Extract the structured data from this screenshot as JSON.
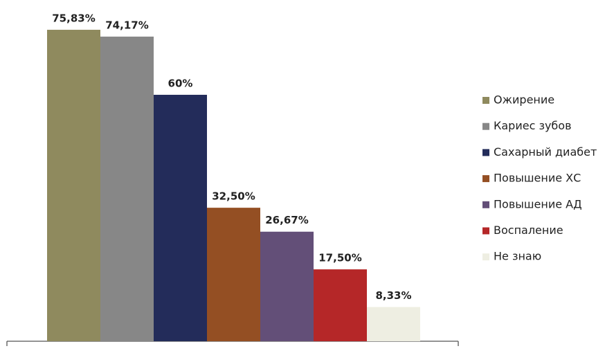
{
  "chart_data": {
    "type": "bar",
    "legend": "right",
    "series": [
      {
        "name": "Ожирение",
        "color": "#8f8a5e",
        "values": [
          75.83
        ],
        "value_labels": [
          "75,83%"
        ]
      },
      {
        "name": "Кариес зубов",
        "color": "#878787",
        "values": [
          74.17
        ],
        "value_labels": [
          "74,17%"
        ]
      },
      {
        "name": "Сахарный диабет",
        "color": "#232c5a",
        "values": [
          60
        ],
        "value_labels": [
          "60%"
        ]
      },
      {
        "name": "Повышение ХС",
        "color": "#944f23",
        "values": [
          32.5
        ],
        "value_labels": [
          "32,50%"
        ]
      },
      {
        "name": "Повышение АД",
        "color": "#634f78",
        "values": [
          26.67
        ],
        "value_labels": [
          "26,67%"
        ]
      },
      {
        "name": "Воспаление",
        "color": "#b52728",
        "values": [
          17.5
        ],
        "value_labels": [
          "17,50%"
        ]
      },
      {
        "name": "Не знаю",
        "color": "#eeeee2",
        "values": [
          8.33
        ],
        "value_labels": [
          "8,33%"
        ]
      }
    ]
  }
}
